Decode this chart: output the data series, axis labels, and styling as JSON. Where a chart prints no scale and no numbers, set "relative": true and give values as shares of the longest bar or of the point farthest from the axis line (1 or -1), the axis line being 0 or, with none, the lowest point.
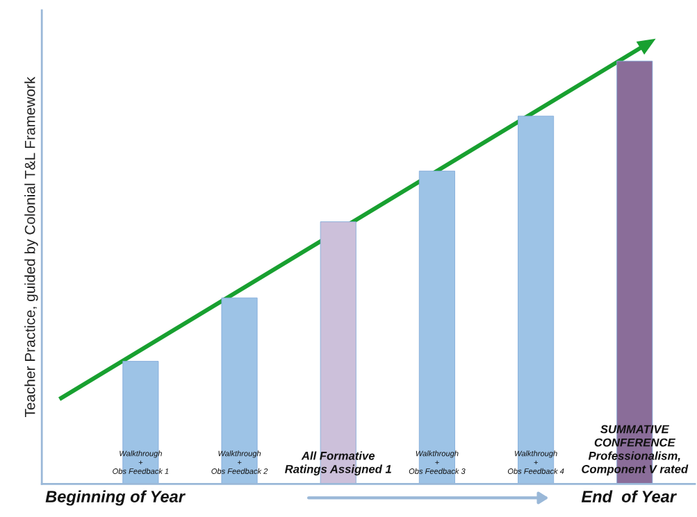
{
  "chart_data": {
    "type": "bar",
    "relative": true,
    "ylabel": "Teacher Practice, guided by Colonial T&L Framework",
    "categories": [
      "Walkthrough\n+\nObs Feedback 1",
      "Walkthrough\n+\nObs Feedback 2",
      "All Formative\nRatings Assigned 1",
      "Walkthrough\n+\nObs Feedback 3",
      "Walkthrough\n+\nObs Feedback 4",
      "SUMMATIVE\nCONFERENCE\nProfessionalism,\nComponent V rated"
    ],
    "values": [
      0.29,
      0.44,
      0.62,
      0.74,
      0.87,
      1.0
    ],
    "colors": [
      "#9dc3e6",
      "#9dc3e6",
      "#ccc0da",
      "#9dc3e6",
      "#9dc3e6",
      "#8a6d99"
    ],
    "annotations": [
      "Beginning of Year",
      "End  of Year"
    ],
    "legend": false
  }
}
